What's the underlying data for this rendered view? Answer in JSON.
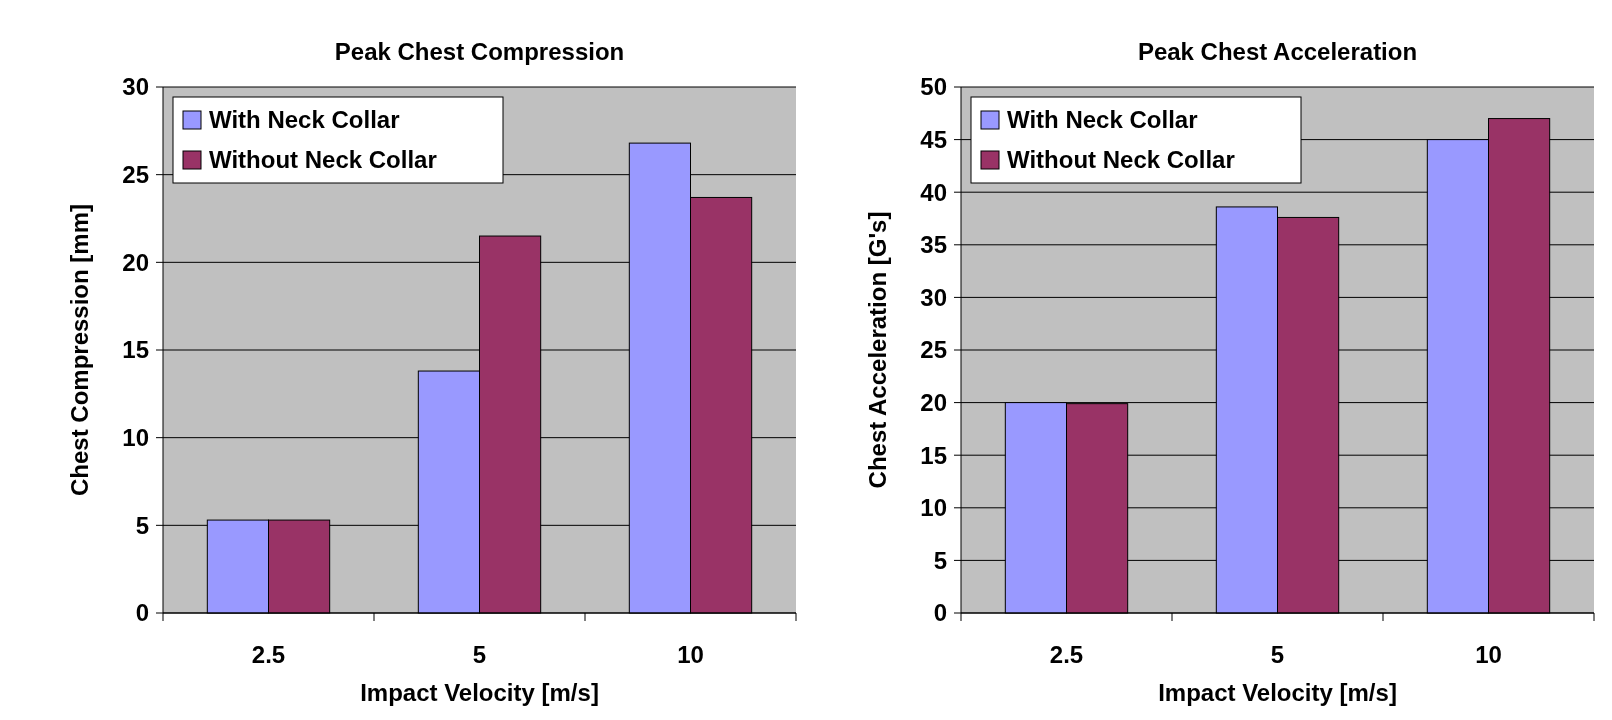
{
  "chart_data": [
    {
      "type": "bar",
      "title": "Peak Chest Compression",
      "xlabel": "Impact Velocity [m/s]",
      "ylabel": "Chest Compression [mm]",
      "categories": [
        "2.5",
        "5",
        "10"
      ],
      "series": [
        {
          "name": "With Neck Collar",
          "color": "#9999ff",
          "values": [
            5.3,
            13.8,
            26.8
          ]
        },
        {
          "name": "Without Neck Collar",
          "color": "#993366",
          "values": [
            5.3,
            21.5,
            23.7
          ]
        }
      ],
      "ylim": [
        0,
        30
      ],
      "yticks": [
        0,
        5,
        10,
        15,
        20,
        25,
        30
      ],
      "grid": "y",
      "legend": "top left"
    },
    {
      "type": "bar",
      "title": "Peak Chest Acceleration",
      "xlabel": "Impact Velocity [m/s]",
      "ylabel": "Chest Acceleration [G's]",
      "categories": [
        "2.5",
        "5",
        "10"
      ],
      "series": [
        {
          "name": "With Neck Collar",
          "color": "#9999ff",
          "values": [
            20.0,
            38.6,
            45.0
          ]
        },
        {
          "name": "Without Neck Collar",
          "color": "#993366",
          "values": [
            19.9,
            37.6,
            47.0
          ]
        }
      ],
      "ylim": [
        0,
        50
      ],
      "yticks": [
        0,
        5,
        10,
        15,
        20,
        25,
        30,
        35,
        40,
        45,
        50
      ],
      "grid": "y",
      "legend": "top left"
    }
  ]
}
